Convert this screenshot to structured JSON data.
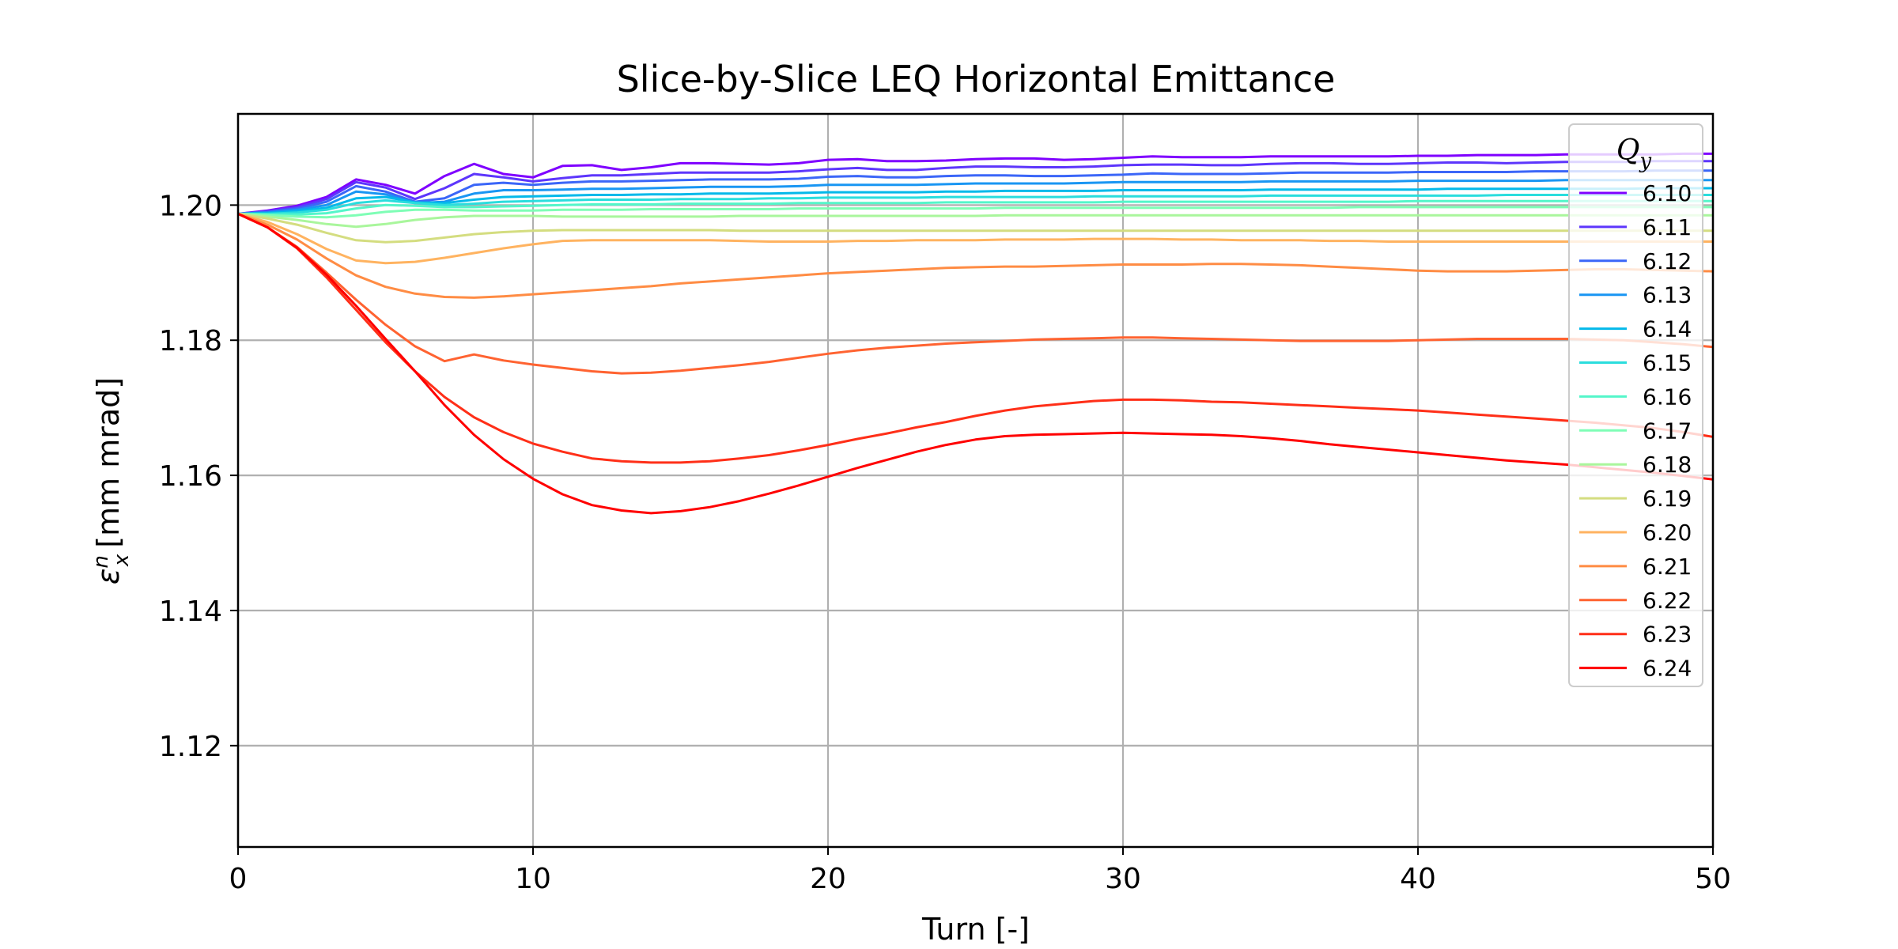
{
  "chart_data": {
    "type": "line",
    "title": "Slice-by-Slice LEQ Horizontal Emittance",
    "xlabel": "Turn [-]",
    "ylabel": "ε_x^n [mm mrad]",
    "ylabel_parts": {
      "symbol": "ε",
      "sup": "n",
      "sub": "x",
      "unit": "[mm mrad]"
    },
    "xlim": [
      0,
      50
    ],
    "ylim": [
      1.105,
      1.2135
    ],
    "xticks": [
      0,
      10,
      20,
      30,
      40,
      50
    ],
    "yticks": [
      1.12,
      1.14,
      1.16,
      1.18,
      1.2
    ],
    "ytick_labels": [
      "1.12",
      "1.14",
      "1.16",
      "1.18",
      "1.20"
    ],
    "grid": true,
    "legend": {
      "title": "Q",
      "title_sub": "y",
      "position": "top-right"
    },
    "x": [
      0,
      1,
      2,
      3,
      4,
      5,
      6,
      7,
      8,
      9,
      10,
      11,
      12,
      13,
      14,
      15,
      16,
      17,
      18,
      19,
      20,
      21,
      22,
      23,
      24,
      25,
      26,
      27,
      28,
      29,
      30,
      31,
      32,
      33,
      34,
      35,
      36,
      37,
      38,
      39,
      40,
      41,
      42,
      43,
      44,
      45,
      46,
      47,
      48,
      49,
      50
    ],
    "series": [
      {
        "name": "6.10",
        "color": "#7f00ff",
        "values": [
          1.1987,
          1.1992,
          1.1999,
          1.2012,
          1.2038,
          1.203,
          1.2017,
          1.2043,
          1.2061,
          1.2046,
          1.2041,
          1.2058,
          1.2059,
          1.2052,
          1.2056,
          1.2062,
          1.2062,
          1.2061,
          1.206,
          1.2062,
          1.2067,
          1.2068,
          1.2065,
          1.2065,
          1.2066,
          1.2068,
          1.2069,
          1.2069,
          1.2067,
          1.2068,
          1.207,
          1.2072,
          1.2071,
          1.2071,
          1.2071,
          1.2072,
          1.2072,
          1.2072,
          1.2072,
          1.2072,
          1.2073,
          1.2073,
          1.2074,
          1.2074,
          1.2074,
          1.2075,
          1.2075,
          1.2075,
          1.2075,
          1.2076,
          1.2076
        ]
      },
      {
        "name": "6.11",
        "color": "#5d36fc",
        "values": [
          1.1987,
          1.1991,
          1.1997,
          1.2009,
          1.2034,
          1.2026,
          1.2009,
          1.2025,
          1.2046,
          1.2041,
          1.2035,
          1.204,
          1.2044,
          1.2044,
          1.2046,
          1.2048,
          1.2048,
          1.2048,
          1.2048,
          1.205,
          1.2053,
          1.2055,
          1.2052,
          1.2052,
          1.2055,
          1.2057,
          1.2057,
          1.2056,
          1.2056,
          1.2057,
          1.2059,
          1.206,
          1.206,
          1.2059,
          1.2059,
          1.2061,
          1.2062,
          1.2062,
          1.2061,
          1.2061,
          1.2062,
          1.2063,
          1.2063,
          1.2062,
          1.2063,
          1.2064,
          1.2064,
          1.2064,
          1.2065,
          1.2065,
          1.2065
        ]
      },
      {
        "name": "6.12",
        "color": "#3b66f8",
        "values": [
          1.1987,
          1.199,
          1.1995,
          1.2005,
          1.2028,
          1.202,
          1.2005,
          1.201,
          1.203,
          1.2033,
          1.203,
          1.2033,
          1.2035,
          1.2035,
          1.2036,
          1.2037,
          1.2038,
          1.2038,
          1.2038,
          1.2039,
          1.2042,
          1.2043,
          1.2041,
          1.2041,
          1.2043,
          1.2044,
          1.2044,
          1.2043,
          1.2043,
          1.2044,
          1.2045,
          1.2047,
          1.2046,
          1.2046,
          1.2046,
          1.2047,
          1.2048,
          1.2048,
          1.2048,
          1.2048,
          1.2049,
          1.2049,
          1.2049,
          1.2049,
          1.205,
          1.205,
          1.205,
          1.205,
          1.2051,
          1.2051,
          1.2051
        ]
      },
      {
        "name": "6.13",
        "color": "#1996f3",
        "values": [
          1.1987,
          1.1989,
          1.1993,
          1.2,
          1.202,
          1.2016,
          1.2003,
          1.2005,
          1.2017,
          1.2022,
          1.2022,
          1.2023,
          1.2024,
          1.2024,
          1.2025,
          1.2026,
          1.2027,
          1.2027,
          1.2027,
          1.2028,
          1.203,
          1.203,
          1.203,
          1.203,
          1.2031,
          1.2032,
          1.2032,
          1.2032,
          1.2032,
          1.2033,
          1.2034,
          1.2034,
          1.2034,
          1.2034,
          1.2034,
          1.2035,
          1.2035,
          1.2035,
          1.2035,
          1.2035,
          1.2036,
          1.2036,
          1.2036,
          1.2036,
          1.2036,
          1.2037,
          1.2037,
          1.2037,
          1.2037,
          1.2037,
          1.2037
        ]
      },
      {
        "name": "6.14",
        "color": "#04b9ea",
        "values": [
          1.1987,
          1.1988,
          1.1991,
          1.1996,
          1.201,
          1.2012,
          1.2004,
          1.2003,
          1.2008,
          1.2012,
          1.2013,
          1.2014,
          1.2015,
          1.2015,
          1.2016,
          1.2016,
          1.2017,
          1.2017,
          1.2017,
          1.2018,
          1.2019,
          1.2019,
          1.2019,
          1.2019,
          1.202,
          1.202,
          1.2021,
          1.2021,
          1.2021,
          1.2021,
          1.2022,
          1.2022,
          1.2022,
          1.2022,
          1.2022,
          1.2023,
          1.2023,
          1.2023,
          1.2023,
          1.2023,
          1.2023,
          1.2024,
          1.2024,
          1.2024,
          1.2024,
          1.2024,
          1.2024,
          1.2024,
          1.2025,
          1.2025,
          1.2025
        ]
      },
      {
        "name": "6.15",
        "color": "#2adddd",
        "values": [
          1.1987,
          1.1987,
          1.1989,
          1.1993,
          1.2003,
          1.2007,
          1.2003,
          1.2,
          1.2002,
          1.2005,
          1.2006,
          1.2007,
          1.2008,
          1.2008,
          1.2008,
          1.2009,
          1.2009,
          1.2009,
          1.201,
          1.201,
          1.2011,
          1.2011,
          1.2011,
          1.2011,
          1.2012,
          1.2012,
          1.2012,
          1.2012,
          1.2012,
          1.2013,
          1.2013,
          1.2013,
          1.2013,
          1.2013,
          1.2013,
          1.2014,
          1.2014,
          1.2014,
          1.2014,
          1.2014,
          1.2014,
          1.2014,
          1.2014,
          1.2015,
          1.2015,
          1.2015,
          1.2015,
          1.2015,
          1.2015,
          1.2015,
          1.2015
        ]
      },
      {
        "name": "6.16",
        "color": "#54f6ca",
        "values": [
          1.1987,
          1.1986,
          1.1986,
          1.1988,
          1.1995,
          1.2,
          1.1999,
          1.1997,
          1.1997,
          1.1998,
          1.1999,
          1.2,
          1.2001,
          1.2001,
          1.2001,
          1.2002,
          1.2002,
          1.2002,
          1.2002,
          1.2003,
          1.2003,
          1.2003,
          1.2003,
          1.2003,
          1.2004,
          1.2004,
          1.2004,
          1.2004,
          1.2004,
          1.2004,
          1.2005,
          1.2005,
          1.2005,
          1.2005,
          1.2005,
          1.2005,
          1.2005,
          1.2005,
          1.2005,
          1.2005,
          1.2006,
          1.2006,
          1.2006,
          1.2006,
          1.2006,
          1.2006,
          1.2006,
          1.2006,
          1.2006,
          1.2006,
          1.2006
        ]
      },
      {
        "name": "6.17",
        "color": "#7ffeb6",
        "values": [
          1.1987,
          1.1985,
          1.1983,
          1.1982,
          1.1985,
          1.199,
          1.1993,
          1.1993,
          1.1992,
          1.1992,
          1.1992,
          1.1993,
          1.1993,
          1.1993,
          1.1994,
          1.1994,
          1.1994,
          1.1994,
          1.1994,
          1.1995,
          1.1995,
          1.1995,
          1.1995,
          1.1995,
          1.1995,
          1.1995,
          1.1996,
          1.1996,
          1.1996,
          1.1996,
          1.1996,
          1.1996,
          1.1996,
          1.1996,
          1.1996,
          1.1996,
          1.1996,
          1.1996,
          1.1997,
          1.1997,
          1.1997,
          1.1997,
          1.1997,
          1.1997,
          1.1997,
          1.1997,
          1.1997,
          1.1997,
          1.1997,
          1.1997,
          1.1997
        ]
      },
      {
        "name": "6.18",
        "color": "#a9f69c",
        "values": [
          1.1987,
          1.1983,
          1.1978,
          1.1972,
          1.1968,
          1.1972,
          1.1978,
          1.1982,
          1.1984,
          1.1984,
          1.1984,
          1.1983,
          1.1983,
          1.1983,
          1.1983,
          1.1983,
          1.1983,
          1.1984,
          1.1984,
          1.1984,
          1.1984,
          1.1984,
          1.1984,
          1.1984,
          1.1984,
          1.1984,
          1.1985,
          1.1985,
          1.1985,
          1.1985,
          1.1985,
          1.1985,
          1.1985,
          1.1985,
          1.1985,
          1.1985,
          1.1985,
          1.1985,
          1.1985,
          1.1985,
          1.1985,
          1.1985,
          1.1985,
          1.1985,
          1.1985,
          1.1985,
          1.1985,
          1.1985,
          1.1985,
          1.1985,
          1.1985
        ]
      },
      {
        "name": "6.19",
        "color": "#d4dd80",
        "values": [
          1.1987,
          1.198,
          1.1971,
          1.1959,
          1.1948,
          1.1945,
          1.1947,
          1.1952,
          1.1957,
          1.196,
          1.1962,
          1.1963,
          1.1963,
          1.1963,
          1.1963,
          1.1963,
          1.1963,
          1.1962,
          1.1962,
          1.1962,
          1.1962,
          1.1962,
          1.1962,
          1.1962,
          1.1962,
          1.1962,
          1.1962,
          1.1962,
          1.1962,
          1.1962,
          1.1962,
          1.1962,
          1.1962,
          1.1962,
          1.1962,
          1.1962,
          1.1962,
          1.1962,
          1.1962,
          1.1962,
          1.1962,
          1.1962,
          1.1962,
          1.1962,
          1.1962,
          1.1962,
          1.1962,
          1.1962,
          1.1962,
          1.1962,
          1.1962
        ]
      },
      {
        "name": "6.20",
        "color": "#ffb360",
        "values": [
          1.1987,
          1.1975,
          1.1957,
          1.1935,
          1.1918,
          1.1914,
          1.1916,
          1.1922,
          1.1929,
          1.1936,
          1.1942,
          1.1947,
          1.1948,
          1.1948,
          1.1948,
          1.1948,
          1.1948,
          1.1947,
          1.1946,
          1.1946,
          1.1946,
          1.1947,
          1.1947,
          1.1948,
          1.1948,
          1.1948,
          1.1949,
          1.1949,
          1.1949,
          1.195,
          1.195,
          1.195,
          1.1949,
          1.1949,
          1.1948,
          1.1948,
          1.1948,
          1.1947,
          1.1947,
          1.1946,
          1.1946,
          1.1946,
          1.1946,
          1.1946,
          1.1946,
          1.1946,
          1.1946,
          1.1946,
          1.1946,
          1.1946,
          1.1946
        ]
      },
      {
        "name": "6.21",
        "color": "#ff8c44",
        "values": [
          1.1987,
          1.1971,
          1.1949,
          1.1921,
          1.1896,
          1.1879,
          1.1869,
          1.1864,
          1.1863,
          1.1865,
          1.1868,
          1.1871,
          1.1874,
          1.1877,
          1.188,
          1.1884,
          1.1887,
          1.189,
          1.1893,
          1.1896,
          1.1899,
          1.1901,
          1.1903,
          1.1905,
          1.1907,
          1.1908,
          1.1909,
          1.1909,
          1.191,
          1.1911,
          1.1912,
          1.1912,
          1.1912,
          1.1913,
          1.1913,
          1.1912,
          1.1911,
          1.1909,
          1.1907,
          1.1905,
          1.1903,
          1.1902,
          1.1902,
          1.1902,
          1.1903,
          1.1904,
          1.1905,
          1.1905,
          1.1904,
          1.1903,
          1.1902
        ]
      },
      {
        "name": "6.22",
        "color": "#ff6331",
        "values": [
          1.1987,
          1.1967,
          1.1938,
          1.19,
          1.186,
          1.1823,
          1.1791,
          1.1769,
          1.1779,
          1.177,
          1.1764,
          1.1759,
          1.1754,
          1.1751,
          1.1752,
          1.1755,
          1.1759,
          1.1763,
          1.1768,
          1.1774,
          1.178,
          1.1785,
          1.1789,
          1.1792,
          1.1795,
          1.1797,
          1.1799,
          1.1801,
          1.1802,
          1.1803,
          1.1804,
          1.1804,
          1.1803,
          1.1802,
          1.1801,
          1.18,
          1.1799,
          1.1799,
          1.1799,
          1.1799,
          1.18,
          1.1801,
          1.1802,
          1.1802,
          1.1802,
          1.1802,
          1.1801,
          1.18,
          1.1797,
          1.1794,
          1.179
        ]
      },
      {
        "name": "6.23",
        "color": "#ff2f18",
        "values": [
          1.1987,
          1.1967,
          1.1936,
          1.1893,
          1.1845,
          1.1797,
          1.1754,
          1.1716,
          1.1686,
          1.1664,
          1.1647,
          1.1635,
          1.1625,
          1.1621,
          1.1619,
          1.1619,
          1.1621,
          1.1625,
          1.163,
          1.1637,
          1.1645,
          1.1654,
          1.1662,
          1.1671,
          1.1679,
          1.1688,
          1.1696,
          1.1702,
          1.1706,
          1.171,
          1.1712,
          1.1712,
          1.1711,
          1.1709,
          1.1708,
          1.1706,
          1.1704,
          1.1702,
          1.17,
          1.1698,
          1.1696,
          1.1693,
          1.169,
          1.1687,
          1.1684,
          1.1681,
          1.1678,
          1.1674,
          1.167,
          1.1664,
          1.1657
        ]
      },
      {
        "name": "6.24",
        "color": "#ff0000",
        "values": [
          1.1987,
          1.1967,
          1.1937,
          1.1897,
          1.1851,
          1.1802,
          1.1754,
          1.1704,
          1.166,
          1.1624,
          1.1595,
          1.1572,
          1.1556,
          1.1548,
          1.1544,
          1.1547,
          1.1553,
          1.1562,
          1.1573,
          1.1585,
          1.1598,
          1.1611,
          1.1623,
          1.1635,
          1.1645,
          1.1653,
          1.1658,
          1.166,
          1.1661,
          1.1662,
          1.1663,
          1.1662,
          1.1661,
          1.166,
          1.1658,
          1.1655,
          1.1651,
          1.1646,
          1.1642,
          1.1638,
          1.1634,
          1.163,
          1.1626,
          1.1622,
          1.1619,
          1.1616,
          1.1612,
          1.1608,
          1.1604,
          1.1599,
          1.1594
        ]
      }
    ]
  }
}
